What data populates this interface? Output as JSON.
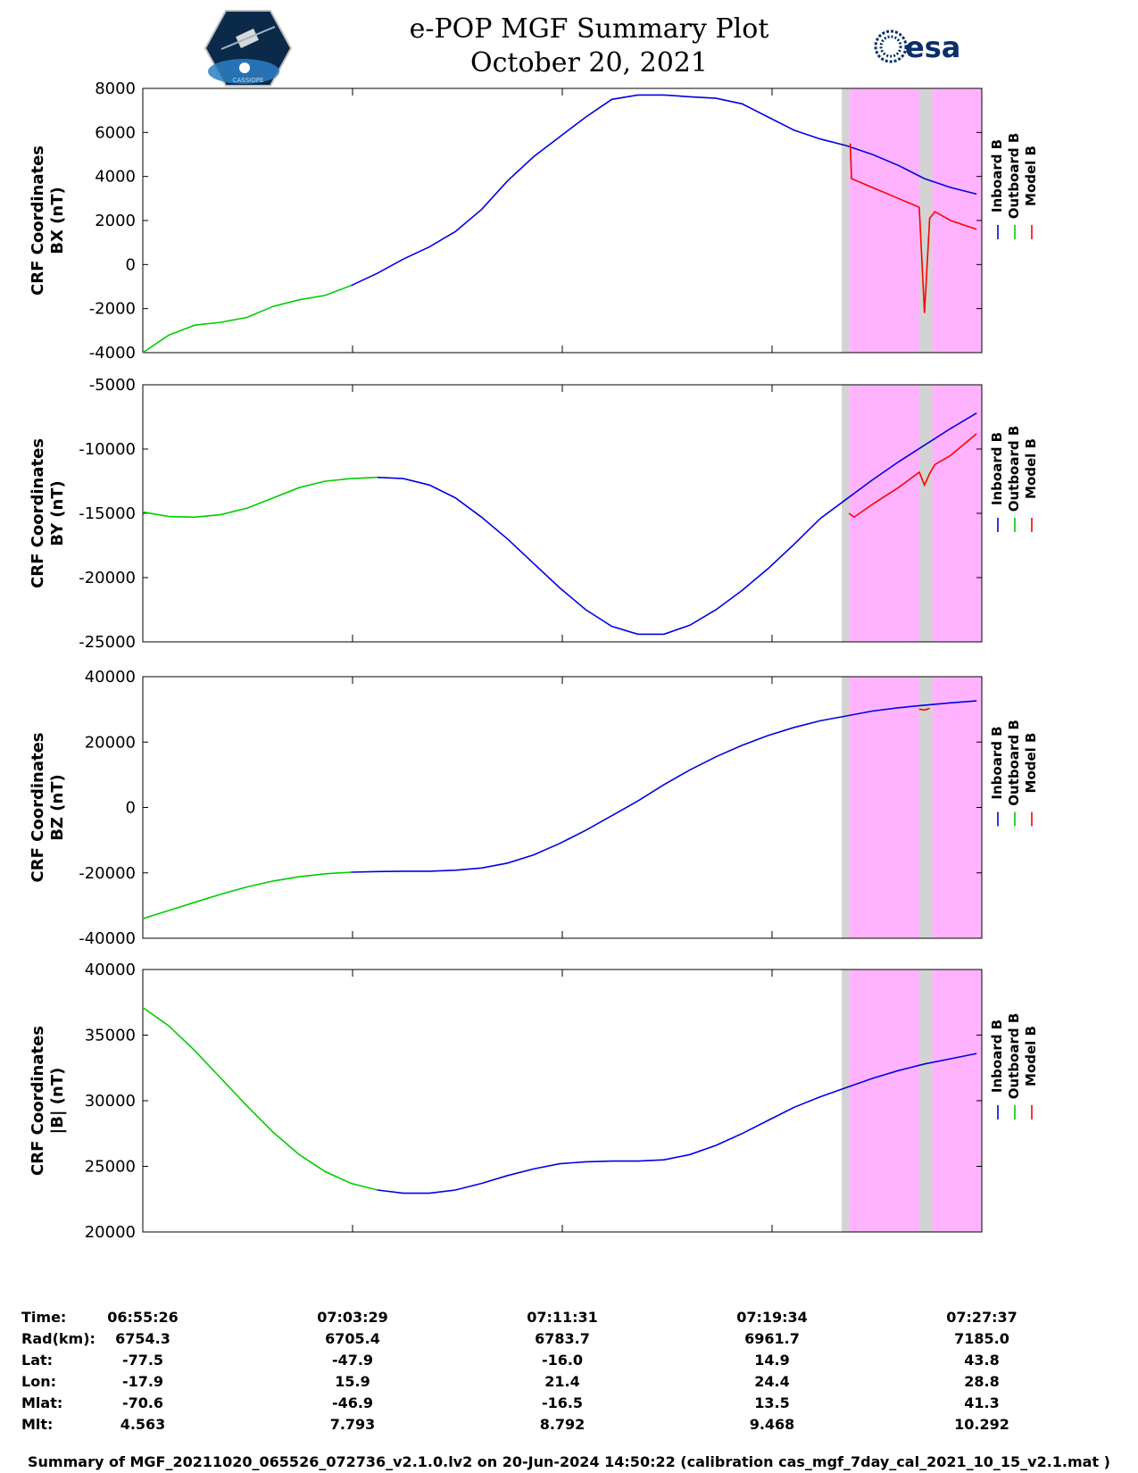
{
  "header": {
    "title_line1": "e-POP MGF Summary Plot",
    "title_line2": "October 20, 2021",
    "logo_left_text": "CASSIOPE",
    "logo_right_text": "esa"
  },
  "colors": {
    "inboard": "#0000e6",
    "outboard": "#00cc00",
    "model": "#ff0000",
    "shade_magenta": "#ffb3ff",
    "shade_gray": "#d3d3d3"
  },
  "legend": [
    "Inboard B",
    "Outboard B",
    "Model B"
  ],
  "time_axis": {
    "ticks": [
      "06:55:26",
      "07:03:29",
      "07:11:31",
      "07:19:34",
      "07:27:37"
    ]
  },
  "chart_data": [
    {
      "type": "line",
      "ylabel_line1": "CRF Coordinates",
      "ylabel_line2": "BX (nT)",
      "ylim": [
        -4000,
        8000
      ],
      "yticks": [
        -4000,
        -2000,
        0,
        2000,
        4000,
        6000,
        8000
      ],
      "x_unit": "minutes since 06:55:26",
      "shaded_region_x": [
        27.1,
        32.2
      ],
      "gray_band_x": [
        29.8,
        30.3
      ],
      "series": [
        {
          "name": "Outboard B",
          "color": "#00cc00",
          "x": [
            0,
            1,
            2,
            3,
            4,
            5,
            6,
            7,
            8
          ],
          "y": [
            -4000,
            -3200,
            -2750,
            -2620,
            -2400,
            -1900,
            -1600,
            -1400,
            -950
          ]
        },
        {
          "name": "Inboard B",
          "color": "#0000e6",
          "x": [
            8,
            9,
            10,
            11,
            12,
            13,
            14,
            15,
            16,
            17,
            18,
            19,
            20,
            21,
            22,
            23,
            24,
            25,
            26,
            27,
            28,
            29,
            30,
            31,
            32
          ],
          "y": [
            -950,
            -400,
            250,
            800,
            1500,
            2500,
            3800,
            4900,
            5800,
            6700,
            7500,
            7700,
            7700,
            7620,
            7550,
            7300,
            6700,
            6100,
            5700,
            5400,
            5000,
            4500,
            3900,
            3500,
            3200
          ]
        },
        {
          "name": "Model B",
          "color": "#ff0000",
          "x": [
            27.15,
            27.2,
            28,
            29,
            29.8,
            30,
            30.2,
            30.4,
            31,
            32
          ],
          "y": [
            5500,
            3900,
            3500,
            3000,
            2600,
            -2200,
            2100,
            2400,
            2000,
            1600
          ]
        }
      ]
    },
    {
      "type": "line",
      "ylabel_line1": "CRF Coordinates",
      "ylabel_line2": "BY (nT)",
      "ylim": [
        -25000,
        -5000
      ],
      "yticks": [
        -25000,
        -20000,
        -15000,
        -10000,
        -5000
      ],
      "x_unit": "minutes since 06:55:26",
      "shaded_region_x": [
        27.1,
        32.2
      ],
      "gray_band_x": [
        29.8,
        30.3
      ],
      "series": [
        {
          "name": "Outboard B",
          "color": "#00cc00",
          "x": [
            0,
            1,
            2,
            3,
            4,
            5,
            6,
            7,
            8,
            9
          ],
          "y": [
            -14900,
            -15250,
            -15300,
            -15100,
            -14600,
            -13800,
            -13000,
            -12500,
            -12300,
            -12200
          ]
        },
        {
          "name": "Inboard B",
          "color": "#0000e6",
          "x": [
            9,
            10,
            11,
            12,
            13,
            14,
            15,
            16,
            17,
            18,
            19,
            20,
            21,
            22,
            23,
            24,
            25,
            26,
            27,
            28,
            29,
            30,
            31,
            32
          ],
          "y": [
            -12200,
            -12300,
            -12800,
            -13800,
            -15300,
            -17000,
            -18900,
            -20800,
            -22500,
            -23800,
            -24400,
            -24400,
            -23700,
            -22500,
            -21000,
            -19300,
            -17400,
            -15400,
            -13900,
            -12400,
            -11000,
            -9700,
            -8400,
            -7200
          ]
        },
        {
          "name": "Model B",
          "color": "#ff0000",
          "x": [
            27.1,
            27.3,
            28,
            29,
            29.8,
            30,
            30.2,
            30.4,
            31,
            32
          ],
          "y": [
            -15000,
            -15300,
            -14300,
            -13000,
            -11800,
            -12800,
            -11900,
            -11200,
            -10500,
            -8800
          ]
        }
      ]
    },
    {
      "type": "line",
      "ylabel_line1": "CRF Coordinates",
      "ylabel_line2": "BZ (nT)",
      "ylim": [
        -40000,
        40000
      ],
      "yticks": [
        -40000,
        -20000,
        0,
        20000,
        40000
      ],
      "x_unit": "minutes since 06:55:26",
      "shaded_region_x": [
        27.1,
        32.2
      ],
      "gray_band_x": [
        29.8,
        30.3
      ],
      "series": [
        {
          "name": "Outboard B",
          "color": "#00cc00",
          "x": [
            0,
            1,
            2,
            3,
            4,
            5,
            6,
            7,
            8
          ],
          "y": [
            -34000,
            -31500,
            -29000,
            -26500,
            -24300,
            -22500,
            -21200,
            -20300,
            -19800
          ]
        },
        {
          "name": "Inboard B",
          "color": "#0000e6",
          "x": [
            8,
            9,
            10,
            11,
            12,
            13,
            14,
            15,
            16,
            17,
            18,
            19,
            20,
            21,
            22,
            23,
            24,
            25,
            26,
            27,
            28,
            29,
            30,
            31,
            32
          ],
          "y": [
            -19800,
            -19600,
            -19500,
            -19500,
            -19200,
            -18500,
            -17000,
            -14500,
            -11000,
            -7000,
            -2500,
            2000,
            7000,
            11500,
            15500,
            19000,
            22000,
            24500,
            26500,
            28000,
            29500,
            30500,
            31300,
            32000,
            32600
          ]
        },
        {
          "name": "Model B",
          "color": "#ff0000",
          "x": [
            29.8,
            30,
            30.2
          ],
          "y": [
            30100,
            29800,
            30300
          ]
        }
      ]
    },
    {
      "type": "line",
      "ylabel_line1": "CRF Coordinates",
      "ylabel_line2": "|B| (nT)",
      "ylim": [
        20000,
        40000
      ],
      "yticks": [
        20000,
        25000,
        30000,
        35000,
        40000
      ],
      "x_unit": "minutes since 06:55:26",
      "shaded_region_x": [
        27.1,
        32.2
      ],
      "gray_band_x": [
        29.8,
        30.3
      ],
      "series": [
        {
          "name": "Outboard B",
          "color": "#00cc00",
          "x": [
            0,
            1,
            2,
            3,
            4,
            5,
            6,
            7,
            8,
            9
          ],
          "y": [
            37100,
            35700,
            33800,
            31700,
            29600,
            27600,
            25900,
            24600,
            23700,
            23200
          ]
        },
        {
          "name": "Inboard B",
          "color": "#0000e6",
          "x": [
            9,
            10,
            11,
            12,
            13,
            14,
            15,
            16,
            17,
            18,
            19,
            20,
            21,
            22,
            23,
            24,
            25,
            26,
            27,
            28,
            29,
            30,
            31,
            32
          ],
          "y": [
            23200,
            22950,
            22950,
            23200,
            23700,
            24300,
            24800,
            25200,
            25350,
            25400,
            25400,
            25500,
            25900,
            26600,
            27500,
            28500,
            29500,
            30300,
            31000,
            31700,
            32300,
            32800,
            33200,
            33600
          ]
        }
      ]
    }
  ],
  "ephemeris": {
    "rows": [
      {
        "label": "Time:",
        "values": [
          "06:55:26",
          "07:03:29",
          "07:11:31",
          "07:19:34",
          "07:27:37"
        ]
      },
      {
        "label": "Rad(km):",
        "values": [
          "6754.3",
          "6705.4",
          "6783.7",
          "6961.7",
          "7185.0"
        ]
      },
      {
        "label": "Lat:",
        "values": [
          "-77.5",
          "-47.9",
          "-16.0",
          "14.9",
          "43.8"
        ]
      },
      {
        "label": "Lon:",
        "values": [
          "-17.9",
          "15.9",
          "21.4",
          "24.4",
          "28.8"
        ]
      },
      {
        "label": "Mlat:",
        "values": [
          "-70.6",
          "-46.9",
          "-16.5",
          "13.5",
          "41.3"
        ]
      },
      {
        "label": "Mlt:",
        "values": [
          "4.563",
          "7.793",
          "8.792",
          "9.468",
          "10.292"
        ]
      }
    ]
  },
  "footer": "Summary of MGF_20211020_065526_072736_v2.1.0.lv2 on 20-Jun-2024 14:50:22 (calibration cas_mgf_7day_cal_2021_10_15_v2.1.mat )"
}
